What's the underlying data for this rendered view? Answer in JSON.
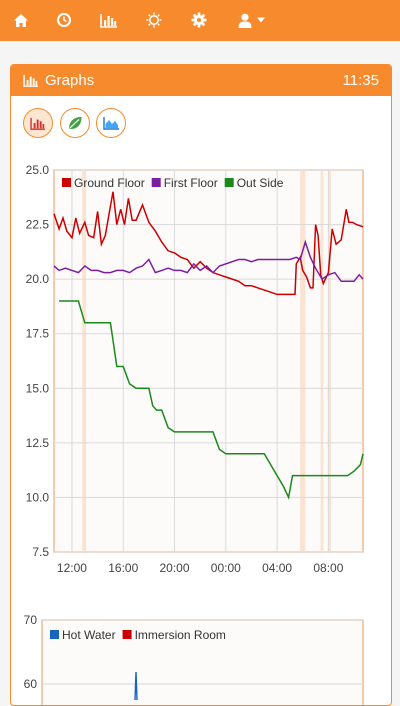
{
  "nav": {
    "items": [
      {
        "icon": "home-icon"
      },
      {
        "icon": "clock-icon"
      },
      {
        "icon": "bar-chart-icon"
      },
      {
        "icon": "sun-icon"
      },
      {
        "icon": "gear-icon"
      },
      {
        "icon": "user-icon"
      }
    ],
    "accent": "#f78a2c"
  },
  "panel": {
    "title": "Graphs",
    "time": "11:35",
    "view_buttons": [
      {
        "icon": "bar-chart-icon",
        "active": true
      },
      {
        "icon": "leaf-icon",
        "active": false
      },
      {
        "icon": "area-chart-icon",
        "active": false
      }
    ]
  },
  "chart_data": [
    {
      "type": "line",
      "title": "",
      "x_ticks": [
        "12:00",
        "16:00",
        "20:00",
        "00:00",
        "04:00",
        "08:00"
      ],
      "y_ticks": [
        "7.5",
        "10.0",
        "12.5",
        "15.0",
        "17.5",
        "20.0",
        "22.5",
        "25.0"
      ],
      "ylim": [
        7.5,
        25.0
      ],
      "x_range_hours": [
        10.6,
        34.7
      ],
      "legend_position": "top-left",
      "grid": true,
      "highlight_bands_hours": [
        [
          12.8,
          13.1
        ],
        [
          29.8,
          30.2
        ],
        [
          31.4,
          31.6
        ],
        [
          32.0,
          32.2
        ]
      ],
      "series": [
        {
          "name": "Ground Floor",
          "color": "#cc0000",
          "points": [
            [
              10.6,
              23.0
            ],
            [
              11.0,
              22.3
            ],
            [
              11.3,
              22.8
            ],
            [
              11.6,
              22.2
            ],
            [
              12.0,
              21.9
            ],
            [
              12.3,
              22.8
            ],
            [
              12.6,
              22.1
            ],
            [
              13.0,
              22.6
            ],
            [
              13.3,
              22.0
            ],
            [
              13.7,
              21.9
            ],
            [
              14.0,
              23.1
            ],
            [
              14.3,
              21.6
            ],
            [
              14.6,
              22.0
            ],
            [
              14.9,
              23.0
            ],
            [
              15.2,
              24.0
            ],
            [
              15.5,
              22.5
            ],
            [
              15.8,
              23.2
            ],
            [
              16.1,
              22.5
            ],
            [
              16.4,
              23.7
            ],
            [
              16.7,
              22.7
            ],
            [
              17.0,
              22.7
            ],
            [
              17.5,
              23.4
            ],
            [
              18.0,
              22.6
            ],
            [
              18.5,
              22.2
            ],
            [
              19.0,
              21.7
            ],
            [
              19.5,
              21.3
            ],
            [
              20.0,
              21.2
            ],
            [
              20.5,
              21.0
            ],
            [
              21.0,
              20.9
            ],
            [
              21.5,
              20.5
            ],
            [
              22.0,
              20.8
            ],
            [
              22.5,
              20.5
            ],
            [
              23.0,
              20.3
            ],
            [
              23.5,
              20.2
            ],
            [
              24.0,
              20.1
            ],
            [
              24.5,
              20.0
            ],
            [
              25.0,
              19.9
            ],
            [
              25.5,
              19.7
            ],
            [
              26.0,
              19.7
            ],
            [
              26.5,
              19.6
            ],
            [
              27.0,
              19.5
            ],
            [
              27.5,
              19.4
            ],
            [
              28.0,
              19.3
            ],
            [
              28.5,
              19.3
            ],
            [
              29.0,
              19.3
            ],
            [
              29.4,
              19.3
            ],
            [
              29.5,
              20.7
            ],
            [
              29.8,
              21.0
            ],
            [
              30.0,
              20.4
            ],
            [
              30.3,
              20.1
            ],
            [
              30.6,
              19.6
            ],
            [
              30.8,
              19.6
            ],
            [
              31.0,
              22.5
            ],
            [
              31.2,
              22.0
            ],
            [
              31.4,
              20.2
            ],
            [
              31.6,
              19.8
            ],
            [
              32.0,
              20.3
            ],
            [
              32.3,
              22.3
            ],
            [
              32.6,
              21.6
            ],
            [
              33.0,
              21.8
            ],
            [
              33.4,
              23.2
            ],
            [
              33.6,
              22.6
            ],
            [
              33.9,
              22.6
            ],
            [
              34.2,
              22.5
            ],
            [
              34.7,
              22.4
            ]
          ]
        },
        {
          "name": "First Floor",
          "color": "#7b1fa2",
          "points": [
            [
              10.6,
              20.6
            ],
            [
              11.0,
              20.4
            ],
            [
              11.5,
              20.5
            ],
            [
              12.0,
              20.4
            ],
            [
              12.5,
              20.3
            ],
            [
              13.0,
              20.6
            ],
            [
              13.5,
              20.4
            ],
            [
              14.0,
              20.4
            ],
            [
              14.5,
              20.3
            ],
            [
              15.0,
              20.3
            ],
            [
              15.5,
              20.4
            ],
            [
              16.0,
              20.4
            ],
            [
              16.5,
              20.3
            ],
            [
              17.0,
              20.5
            ],
            [
              17.5,
              20.6
            ],
            [
              18.0,
              20.9
            ],
            [
              18.5,
              20.3
            ],
            [
              19.0,
              20.4
            ],
            [
              19.5,
              20.5
            ],
            [
              20.0,
              20.4
            ],
            [
              20.5,
              20.4
            ],
            [
              21.0,
              20.3
            ],
            [
              21.5,
              20.7
            ],
            [
              22.0,
              20.4
            ],
            [
              22.5,
              20.6
            ],
            [
              23.0,
              20.3
            ],
            [
              23.5,
              20.6
            ],
            [
              24.0,
              20.7
            ],
            [
              24.5,
              20.8
            ],
            [
              25.0,
              20.9
            ],
            [
              25.5,
              20.9
            ],
            [
              26.0,
              20.8
            ],
            [
              26.5,
              20.9
            ],
            [
              27.0,
              20.9
            ],
            [
              27.5,
              20.9
            ],
            [
              28.0,
              20.9
            ],
            [
              28.5,
              20.9
            ],
            [
              29.0,
              20.9
            ],
            [
              29.5,
              21.0
            ],
            [
              29.8,
              20.9
            ],
            [
              30.2,
              21.7
            ],
            [
              30.6,
              21.0
            ],
            [
              31.0,
              20.5
            ],
            [
              31.5,
              20.0
            ],
            [
              32.0,
              20.2
            ],
            [
              32.5,
              20.3
            ],
            [
              33.0,
              19.9
            ],
            [
              33.5,
              19.9
            ],
            [
              34.0,
              19.9
            ],
            [
              34.4,
              20.2
            ],
            [
              34.7,
              20.0
            ]
          ]
        },
        {
          "name": "Out Side",
          "color": "#1a8a1a",
          "points": [
            [
              11.0,
              19.0
            ],
            [
              12.5,
              19.0
            ],
            [
              13.0,
              18.0
            ],
            [
              15.0,
              18.0
            ],
            [
              15.2,
              17.2
            ],
            [
              15.5,
              16.0
            ],
            [
              16.0,
              16.0
            ],
            [
              16.5,
              15.2
            ],
            [
              17.0,
              15.0
            ],
            [
              18.0,
              15.0
            ],
            [
              18.3,
              14.2
            ],
            [
              18.6,
              14.0
            ],
            [
              19.0,
              14.0
            ],
            [
              19.5,
              13.2
            ],
            [
              20.0,
              13.0
            ],
            [
              23.0,
              13.0
            ],
            [
              23.5,
              12.2
            ],
            [
              24.0,
              12.0
            ],
            [
              27.0,
              12.0
            ],
            [
              27.5,
              11.5
            ],
            [
              28.0,
              11.0
            ],
            [
              28.5,
              10.5
            ],
            [
              28.9,
              10.0
            ],
            [
              29.2,
              11.0
            ],
            [
              33.5,
              11.0
            ],
            [
              34.0,
              11.2
            ],
            [
              34.5,
              11.5
            ],
            [
              34.7,
              12.0
            ]
          ]
        }
      ]
    },
    {
      "type": "line",
      "title": "",
      "y_ticks": [
        "60",
        "70"
      ],
      "legend_position": "top-left",
      "series": [
        {
          "name": "Hot Water",
          "color": "#1565c0"
        },
        {
          "name": "Immersion Room",
          "color": "#cc0000"
        }
      ]
    }
  ]
}
